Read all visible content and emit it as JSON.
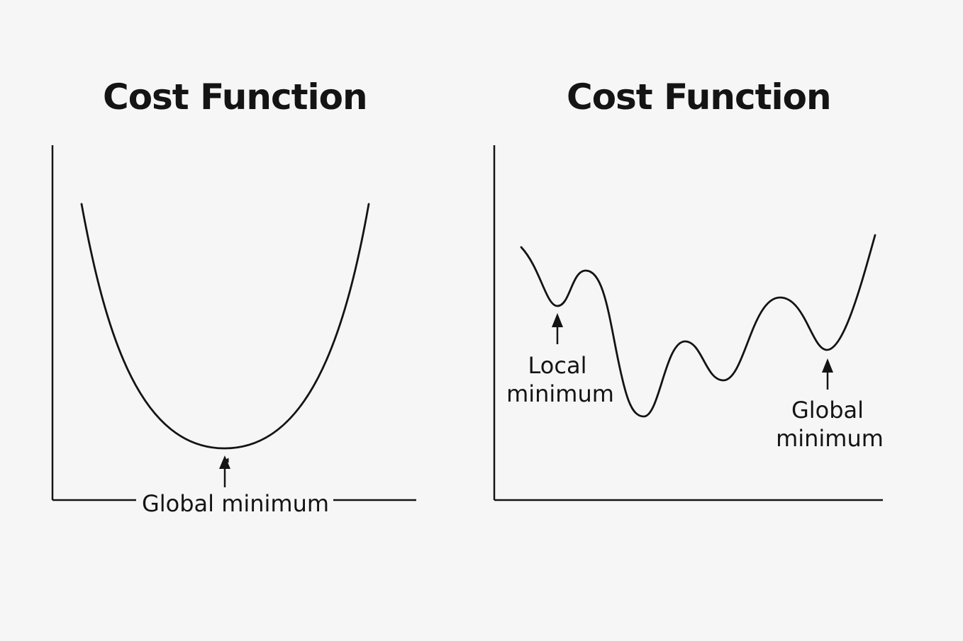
{
  "panels": [
    {
      "title": "Cost Function",
      "annotations": [
        {
          "label": "Global minimum"
        }
      ]
    },
    {
      "title": "Cost Function",
      "annotations": [
        {
          "label_line1": "Local",
          "label_line2": "minimum"
        },
        {
          "label_line1": "Global",
          "label_line2": "minimum"
        }
      ]
    }
  ],
  "colors": {
    "background": "#f6f6f6",
    "ink": "#141414"
  }
}
